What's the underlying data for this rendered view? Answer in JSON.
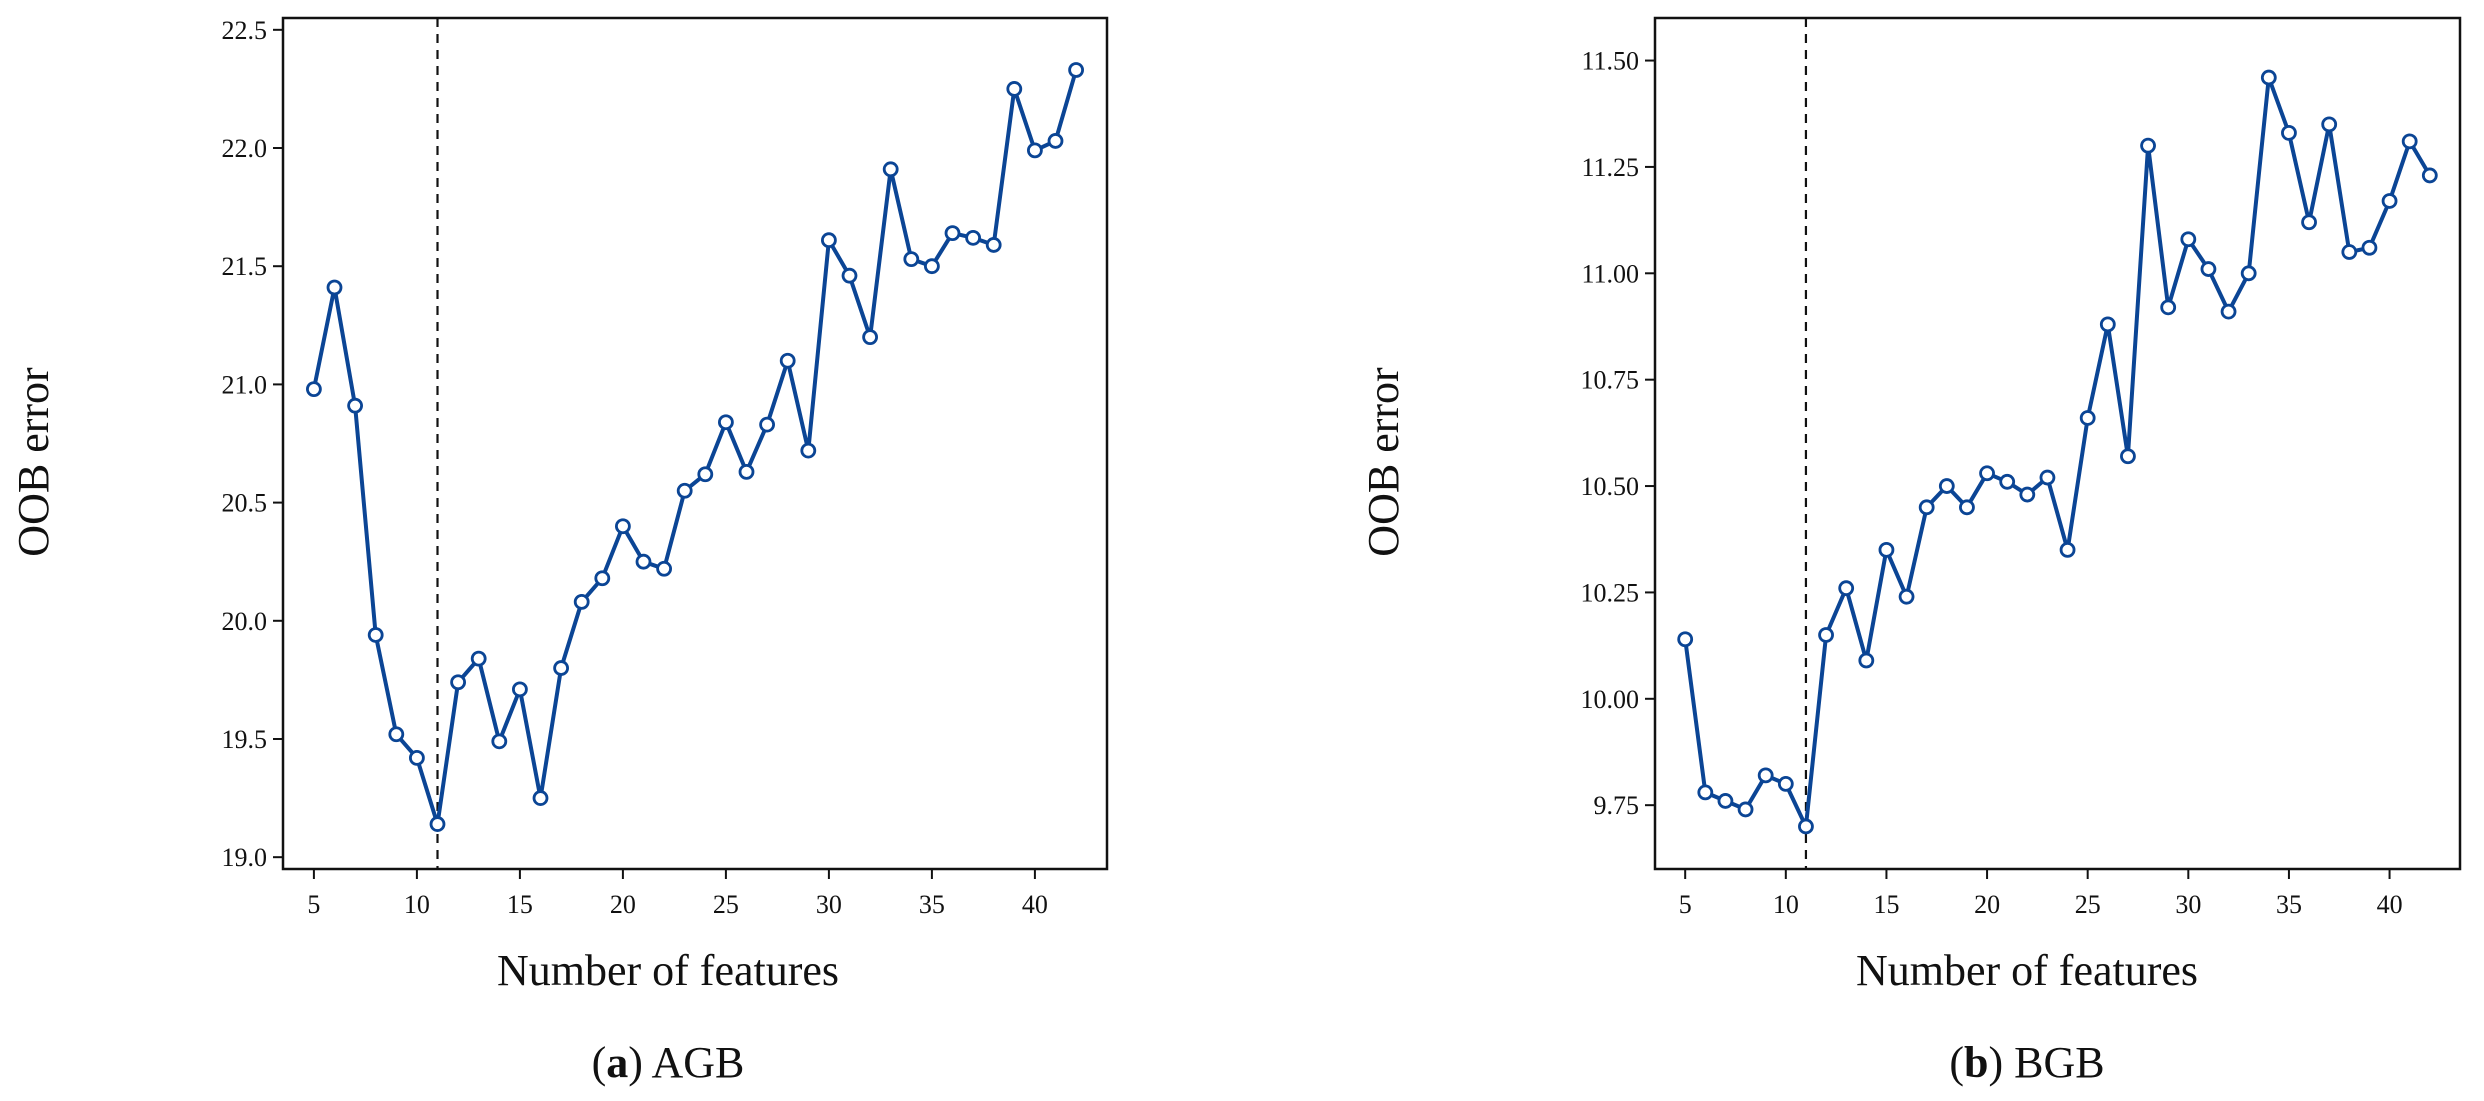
{
  "colors": {
    "line": "#0b4595",
    "marker_fill": "#ffffff",
    "axis": "#111111",
    "vline": "#111111"
  },
  "chart_data": [
    {
      "type": "line",
      "xlabel": "Number of features",
      "ylabel": "OOB error",
      "caption_letter": "a",
      "caption_text": "AGB",
      "xlim": [
        3.5,
        43.5
      ],
      "ylim": [
        18.95,
        22.55
      ],
      "xticks": [
        "5",
        "10",
        "15",
        "20",
        "25",
        "30",
        "35",
        "40"
      ],
      "yticks": [
        "19.0",
        "19.5",
        "20.0",
        "20.5",
        "21.0",
        "21.5",
        "22.0",
        "22.5"
      ],
      "vline_x": 11,
      "grid": false,
      "x": [
        5,
        6,
        7,
        8,
        9,
        10,
        11,
        12,
        13,
        14,
        15,
        16,
        17,
        18,
        19,
        20,
        21,
        22,
        23,
        24,
        25,
        26,
        27,
        28,
        29,
        30,
        31,
        32,
        33,
        34,
        35,
        36,
        37,
        38,
        39,
        40,
        41,
        42
      ],
      "y": [
        20.98,
        21.41,
        20.91,
        19.94,
        19.52,
        19.42,
        19.14,
        19.74,
        19.84,
        19.49,
        19.71,
        19.25,
        19.8,
        20.08,
        20.18,
        20.4,
        20.25,
        20.22,
        20.55,
        20.62,
        20.84,
        20.63,
        20.83,
        21.1,
        20.72,
        21.61,
        21.46,
        21.2,
        21.91,
        21.53,
        21.5,
        21.64,
        21.62,
        21.59,
        22.25,
        21.99,
        22.03,
        22.33
      ]
    },
    {
      "type": "line",
      "xlabel": "Number of features",
      "ylabel": "OOB error",
      "caption_letter": "b",
      "caption_text": "BGB",
      "xlim": [
        3.5,
        43.5
      ],
      "ylim": [
        9.6,
        11.6
      ],
      "xticks": [
        "5",
        "10",
        "15",
        "20",
        "25",
        "30",
        "35",
        "40"
      ],
      "yticks": [
        "9.75",
        "10.00",
        "10.25",
        "10.50",
        "10.75",
        "11.00",
        "11.25",
        "11.50"
      ],
      "vline_x": 11,
      "grid": false,
      "x": [
        5,
        6,
        7,
        8,
        9,
        10,
        11,
        12,
        13,
        14,
        15,
        16,
        17,
        18,
        19,
        20,
        21,
        22,
        23,
        24,
        25,
        26,
        27,
        28,
        29,
        30,
        31,
        32,
        33,
        34,
        35,
        36,
        37,
        38,
        39,
        40,
        41,
        42
      ],
      "y": [
        10.14,
        9.78,
        9.76,
        9.74,
        9.82,
        9.8,
        9.7,
        10.15,
        10.26,
        10.09,
        10.35,
        10.24,
        10.45,
        10.5,
        10.45,
        10.53,
        10.51,
        10.48,
        10.52,
        10.35,
        10.66,
        10.88,
        10.57,
        11.3,
        10.92,
        11.08,
        11.01,
        10.91,
        11.0,
        11.46,
        11.33,
        11.12,
        11.35,
        11.05,
        11.06,
        11.17,
        11.31,
        11.23
      ]
    }
  ]
}
